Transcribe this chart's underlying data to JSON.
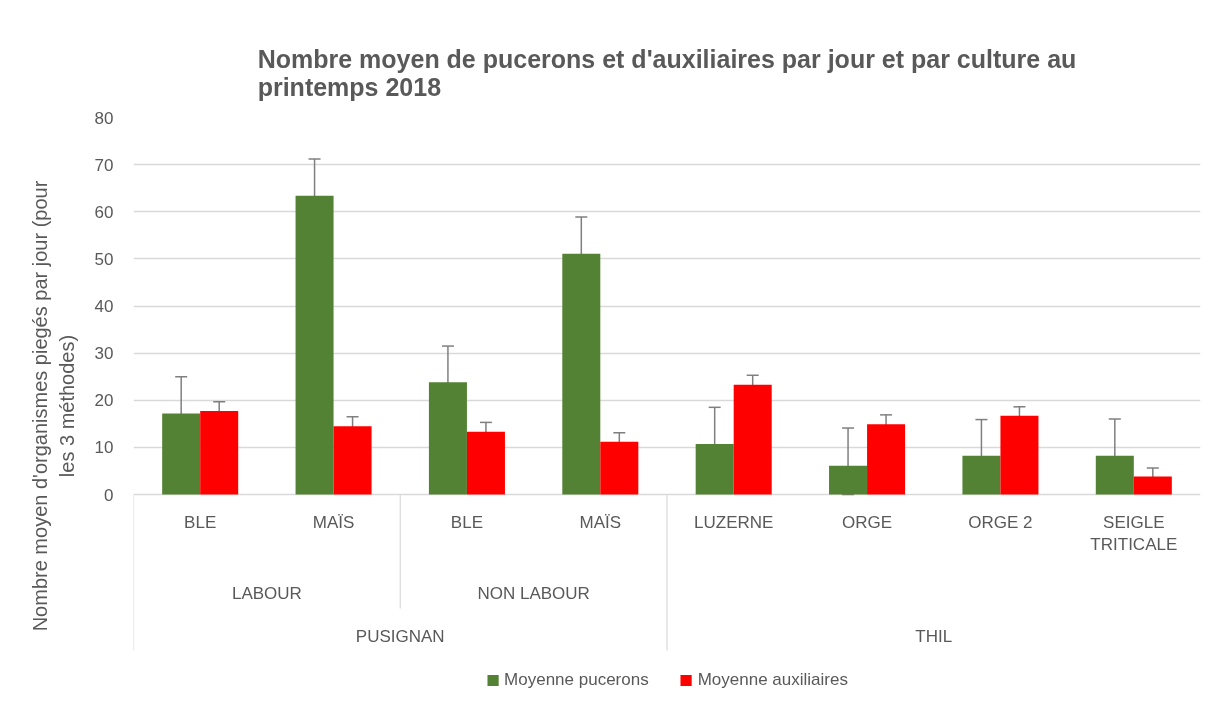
{
  "chart_data": {
    "type": "bar",
    "title": "Nombre moyen de pucerons et d'auxiliaires par jour et par culture au printemps 2018",
    "ylabel": "Nombre moyen d'organismes piegés par jour (pour les 3 méthodes)",
    "categories": [
      [
        "PUSIGNAN",
        "LABOUR",
        "BLE"
      ],
      [
        null,
        null,
        "MAÏS"
      ],
      [
        null,
        "NON LABOUR",
        "BLE"
      ],
      [
        null,
        null,
        "MAÏS"
      ],
      [
        "THIL",
        null,
        "LUZERNE"
      ],
      [
        null,
        null,
        "ORGE"
      ],
      [
        null,
        null,
        "ORGE 2"
      ],
      [
        null,
        null,
        "SEIGLE TRITICALE"
      ]
    ],
    "series": [
      {
        "name": "Moyenne pucerons",
        "color": "#548235",
        "values": [
          17.2,
          63.4,
          23.8,
          51.1,
          10.7,
          6.1,
          8.2,
          8.2
        ],
        "errors": [
          7.8,
          7.8,
          7.7,
          7.8,
          7.8,
          [
            0,
            14.1
          ],
          7.7,
          7.8
        ]
      },
      {
        "name": "Moyenne auxiliaires",
        "color": "#ff0000",
        "values": [
          17.7,
          14.5,
          13.3,
          11.2,
          23.3,
          14.9,
          16.7,
          3.8
        ],
        "errors": [
          2.0,
          2.0,
          2.0,
          1.9,
          2.0,
          2.0,
          1.9,
          1.8
        ]
      }
    ],
    "ylim": [
      0,
      80
    ],
    "yticks": [
      0,
      10,
      20,
      30,
      40,
      50,
      60,
      70,
      80
    ],
    "grid": "y",
    "legend": "bottom"
  }
}
